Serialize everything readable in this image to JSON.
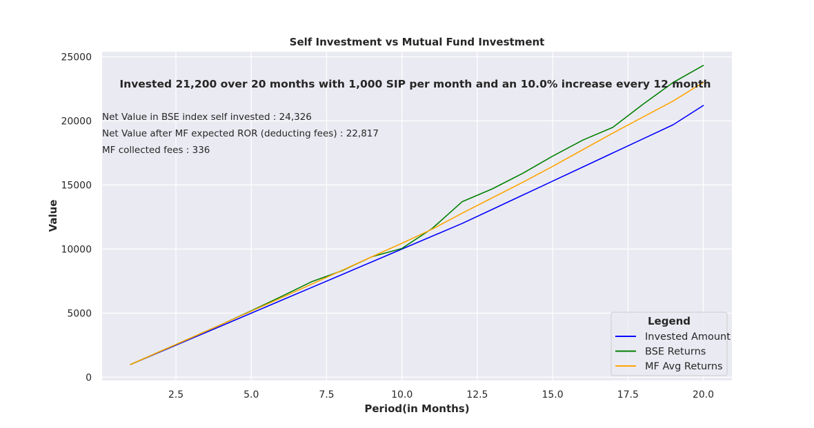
{
  "chart_data": {
    "type": "line",
    "title": "Self Investment vs Mutual Fund Investment",
    "xlabel": "Period(in Months)",
    "ylabel": "Value",
    "xlim": [
      0.05,
      20.95
    ],
    "ylim": [
      -250,
      25400
    ],
    "x_ticks": [
      2.5,
      5.0,
      7.5,
      10.0,
      12.5,
      15.0,
      17.5,
      20.0
    ],
    "x_tick_labels": [
      "2.5",
      "5.0",
      "7.5",
      "10.0",
      "12.5",
      "15.0",
      "17.5",
      "20.0"
    ],
    "y_ticks": [
      0,
      5000,
      10000,
      15000,
      20000,
      25000
    ],
    "y_tick_labels": [
      "0",
      "5000",
      "10000",
      "15000",
      "20000",
      "25000"
    ],
    "grid": true,
    "legend_title": "Legend",
    "legend_position": "lower-right",
    "annotation": "Invested 21,200 over 20 months with 1,000 SIP per month and an 10.0% increase every 12 month",
    "info_lines": [
      "Net Value in BSE index self invested : 24,326",
      "Net Value after MF expected ROR (deducting fees) : 22,817",
      "MF collected fees : 336"
    ],
    "x": [
      1,
      2,
      3,
      4,
      5,
      6,
      7,
      8,
      9,
      10,
      11,
      12,
      13,
      14,
      15,
      16,
      17,
      18,
      19,
      20
    ],
    "series": [
      {
        "name": "Invested Amount",
        "color": "#0000ff",
        "values": [
          1000,
          2000,
          3000,
          4000,
          5000,
          6000,
          7000,
          8000,
          9000,
          10000,
          11000,
          12000,
          13100,
          14200,
          15300,
          16400,
          17500,
          18600,
          19700,
          21200
        ]
      },
      {
        "name": "BSE Returns",
        "color": "#008000",
        "values": [
          1000,
          2040,
          3070,
          4110,
          5180,
          6300,
          7450,
          8300,
          9400,
          10050,
          11600,
          13700,
          14700,
          15900,
          17250,
          18500,
          19500,
          21300,
          23000,
          24326
        ]
      },
      {
        "name": "MF Avg Returns",
        "color": "#ffa500",
        "values": [
          1000,
          2040,
          3070,
          4110,
          5150,
          6200,
          7260,
          8330,
          9400,
          10450,
          11550,
          12800,
          14000,
          15200,
          16450,
          17750,
          19050,
          20300,
          21550,
          23000
        ]
      }
    ]
  }
}
